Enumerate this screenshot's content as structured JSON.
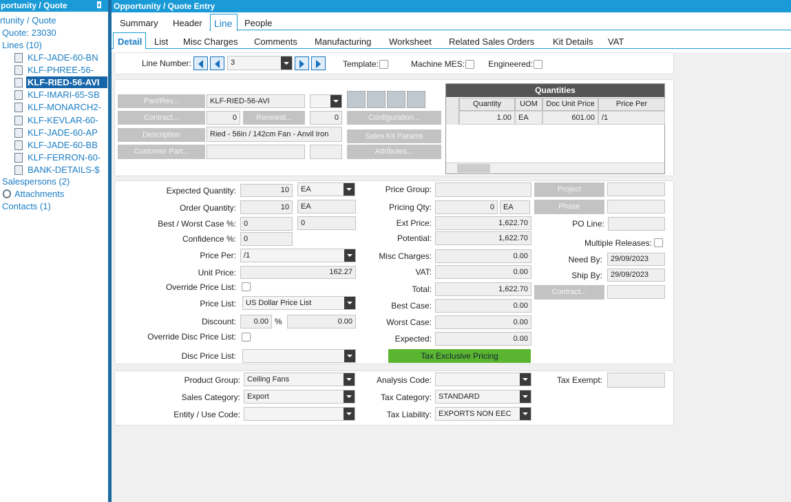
{
  "left_panel": {
    "title": "portunity / Quote",
    "root": "rtunity / Quote",
    "quote": "Quote: 23030",
    "lines": "Lines (10)",
    "line_items": [
      {
        "label": "KLF-JADE-60-BN",
        "selected": false
      },
      {
        "label": "KLF-PHREE-56-",
        "selected": false
      },
      {
        "label": "KLF-RIED-56-AVI",
        "selected": true
      },
      {
        "label": "KLF-IMARI-65-SB",
        "selected": false
      },
      {
        "label": "KLF-MONARCH2-",
        "selected": false
      },
      {
        "label": "KLF-KEVLAR-60-",
        "selected": false
      },
      {
        "label": "KLF-JADE-60-AP",
        "selected": false
      },
      {
        "label": "KLF-JADE-60-BB",
        "selected": false
      },
      {
        "label": "KLF-FERRON-60-",
        "selected": false
      },
      {
        "label": "BANK-DETAILS-$",
        "selected": false
      }
    ],
    "salespersons": "Salespersons (2)",
    "attachments": "Attachments",
    "contacts": "Contacts (1)"
  },
  "header": {
    "title": "Opportunity / Quote Entry"
  },
  "tabs": [
    {
      "label": "Summary",
      "active": false
    },
    {
      "label": "Header",
      "active": false
    },
    {
      "label": "Line",
      "active": true
    },
    {
      "label": "People",
      "active": false
    }
  ],
  "subtabs": [
    {
      "label": "Detail",
      "active": true
    },
    {
      "label": "List",
      "active": false
    },
    {
      "label": "Misc Charges",
      "active": false
    },
    {
      "label": "Comments",
      "active": false
    },
    {
      "label": "Manufacturing",
      "active": false
    },
    {
      "label": "Worksheet",
      "active": false
    },
    {
      "label": "Related Sales Orders",
      "active": false
    },
    {
      "label": "Kit Details",
      "active": false
    },
    {
      "label": "VAT",
      "active": false
    }
  ],
  "line_number": {
    "label": "Line Number:",
    "value": "3",
    "template": "Template:",
    "machine_mes": "Machine MES:",
    "engineered": "Engineered:"
  },
  "part": {
    "part_rev": "Part/Rev...",
    "part_value": "KLF-RIED-56-AVI",
    "contract": "Contract...",
    "contract_value": "0",
    "renewal": "Renewal...",
    "renewal_value": "0",
    "configuration": "Configuration...",
    "description": "Description",
    "description_value": "Ried - 56in / 142cm Fan - Anvil Iron",
    "sales_kit_params": "Sales Kit Params",
    "customer_part": "Customer Part...",
    "attributes": "Attributes..."
  },
  "quantities": {
    "title": "Quantities",
    "columns": [
      "Quantity",
      "UOM",
      "Doc Unit Price",
      "Price Per"
    ],
    "rows": [
      [
        "1.00",
        "EA",
        "601.00",
        "/1"
      ]
    ]
  },
  "detail": {
    "expected_quantity_label": "Expected Quantity:",
    "expected_quantity": "10",
    "expected_uom": "EA",
    "order_quantity_label": "Order Quantity:",
    "order_quantity": "10",
    "order_uom": "EA",
    "best_worst_label": "Best / Worst Case %:",
    "best_pct": "0",
    "worst_pct": "0",
    "confidence_label": "Confidence %:",
    "confidence": "0",
    "price_per_label": "Price Per:",
    "price_per": "/1",
    "unit_price_label": "Unit Price:",
    "unit_price": "162.27",
    "override_price_list_label": "Override Price List:",
    "price_list_label": "Price List:",
    "price_list": "US Dollar Price List",
    "discount_label": "Discount:",
    "discount_pct": "0.00",
    "percent_sign": "%",
    "discount_amount": "0.00",
    "override_disc_label": "Override Disc Price List:",
    "disc_price_list_label": "Disc Price List:",
    "price_group_label": "Price Group:",
    "pricing_qty_label": "Pricing Qty:",
    "pricing_qty": "0",
    "pricing_uom": "EA",
    "ext_price_label": "Ext Price:",
    "ext_price": "1,622.70",
    "potential_label": "Potential:",
    "potential": "1,622.70",
    "misc_charges_label": "Misc Charges:",
    "misc_charges": "0.00",
    "vat_label": "VAT:",
    "vat": "0.00",
    "total_label": "Total:",
    "total": "1,622.70",
    "best_case_label": "Best Case:",
    "best_case": "0.00",
    "worst_case_label": "Worst Case:",
    "worst_case": "0.00",
    "expected_label": "Expected:",
    "expected": "0.00",
    "tax_pricing": "Tax Exclusive Pricing",
    "project": "Project",
    "phase": "Phase",
    "po_line_label": "PO Line:",
    "multiple_releases_label": "Multiple Releases:",
    "need_by_label": "Need By:",
    "need_by": "29/09/2023",
    "ship_by_label": "Ship By:",
    "ship_by": "29/09/2023",
    "contract": "Contract..."
  },
  "classification": {
    "product_group_label": "Product Group:",
    "product_group": "Ceiling Fans",
    "sales_category_label": "Sales Category:",
    "sales_category": "Export",
    "entity_label": "Entity / Use Code:",
    "analysis_code_label": "Analysis Code:",
    "tax_category_label": "Tax Category:",
    "tax_category": "STANDARD",
    "tax_liability_label": "Tax Liability:",
    "tax_liability": "EXPORTS NON EEC",
    "tax_exempt_label": "Tax Exempt:"
  }
}
